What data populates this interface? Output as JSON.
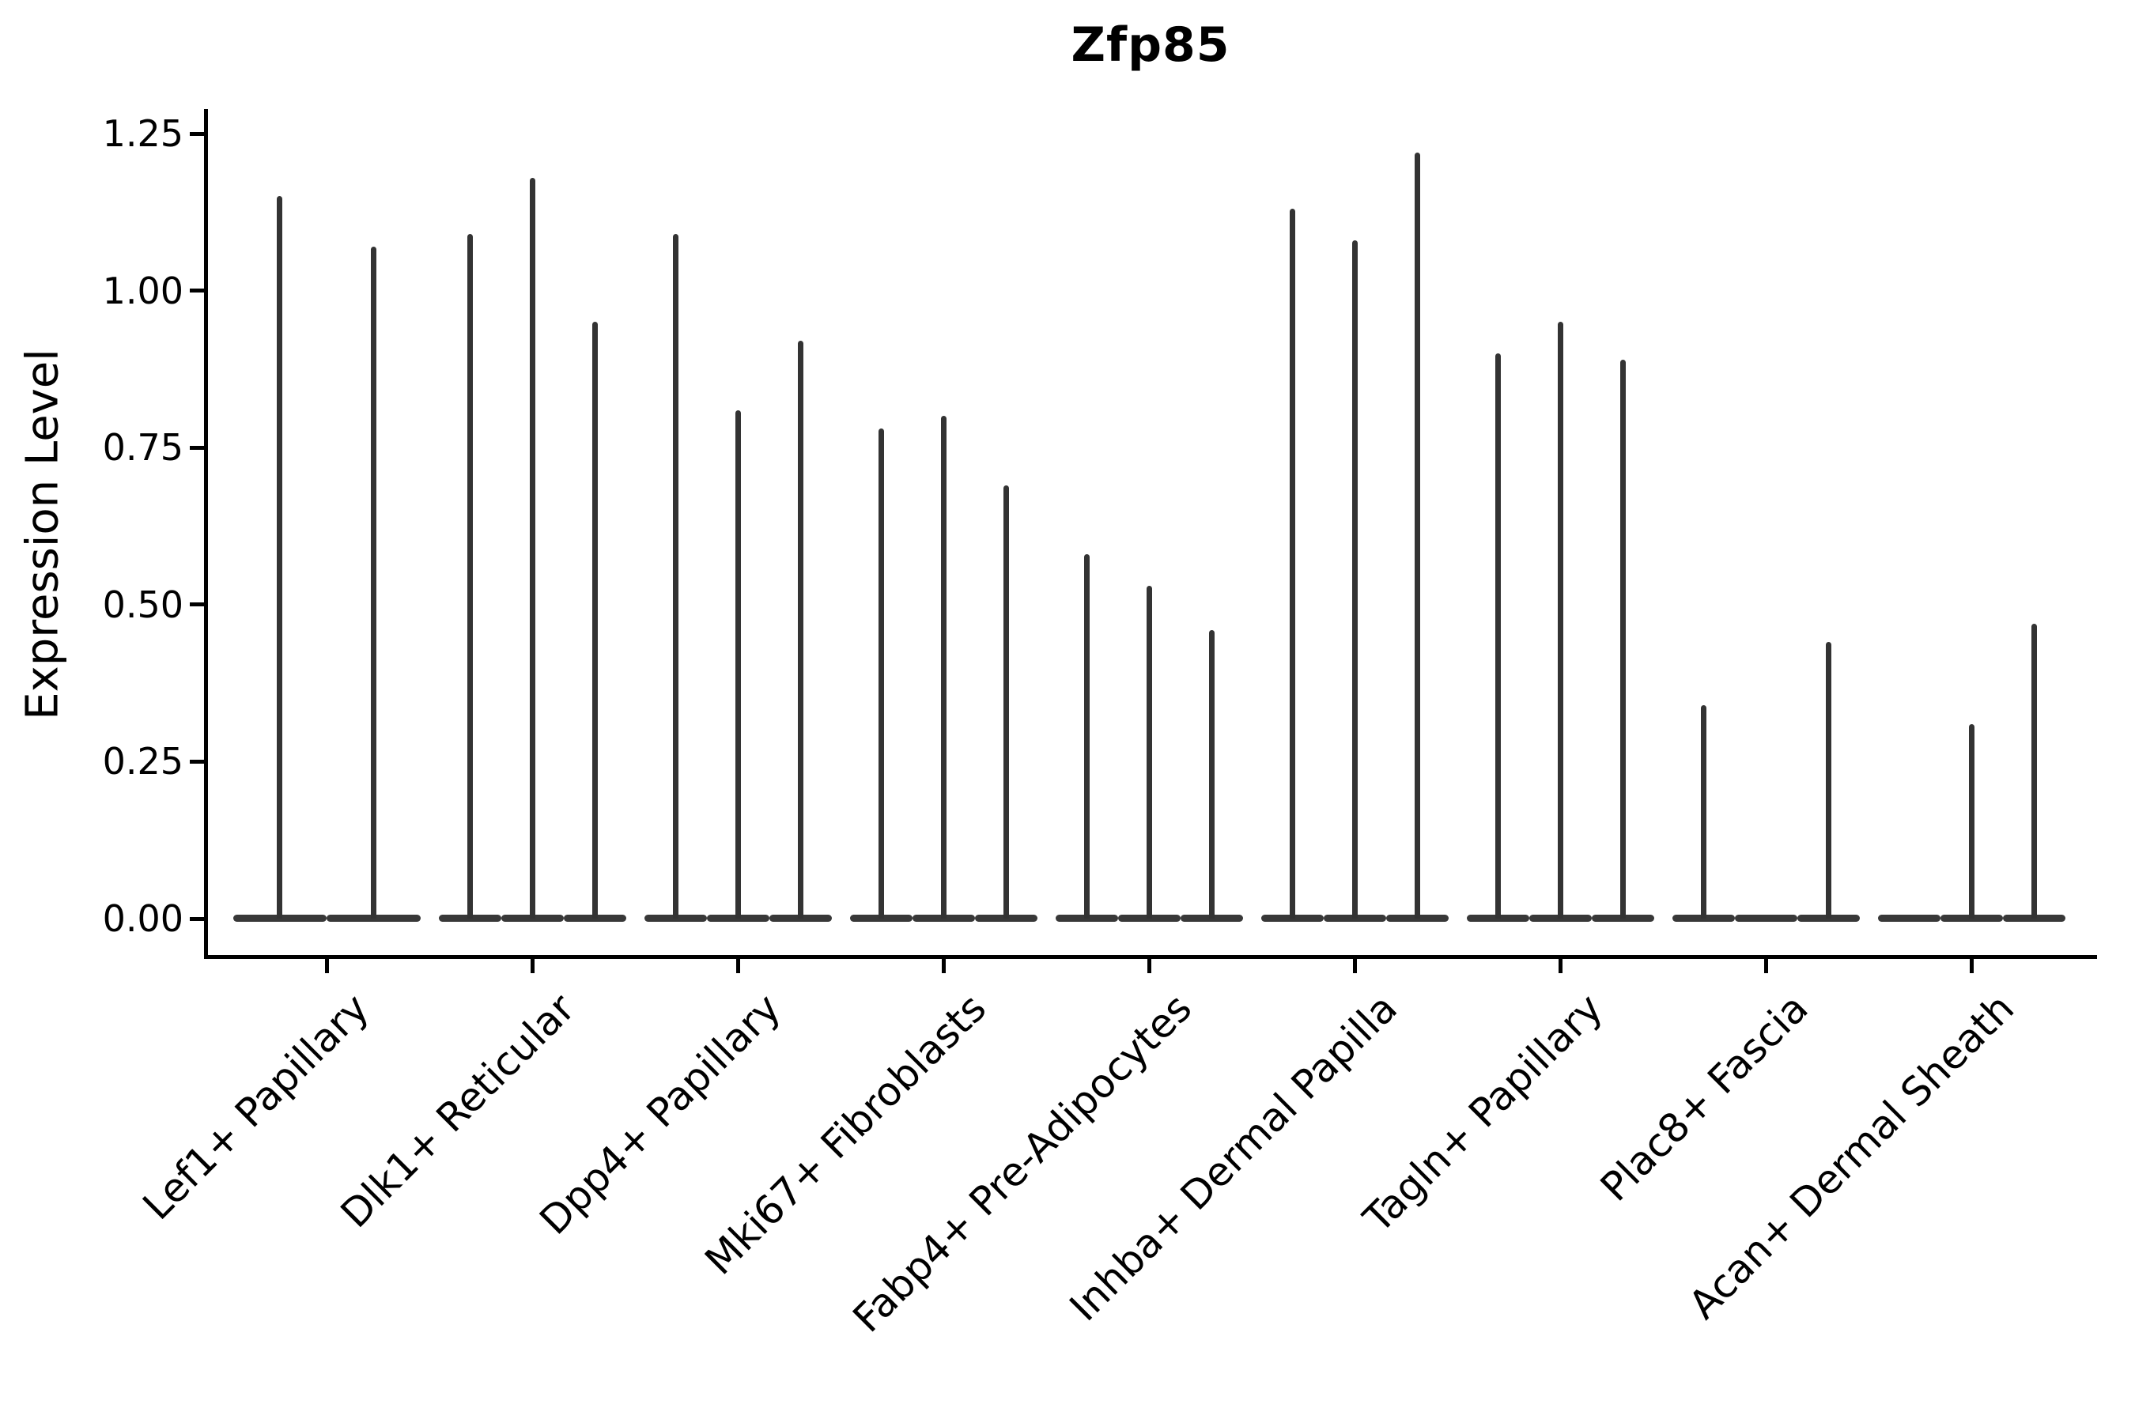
{
  "title": "Zfp85",
  "axes": {
    "ylabel": "Expression Level",
    "xlabel": ""
  },
  "chart_data": {
    "type": "violin",
    "title": "Zfp85",
    "ylabel": "Expression Level",
    "xlabel": "",
    "grid": false,
    "legend": false,
    "ylim": [
      -0.06,
      1.29
    ],
    "yticks": [
      0.0,
      0.25,
      0.5,
      0.75,
      1.0,
      1.25
    ],
    "ytick_labels": [
      "0.00",
      "0.25",
      "0.50",
      "0.75",
      "1.00",
      "1.25"
    ],
    "categories": [
      "Lef1+ Papillary",
      "Dlk1+ Reticular",
      "Dpp4+ Papillary",
      "Mki67+ Fibroblasts",
      "Fabp4+ Pre-Adipocytes",
      "Inhba+ Dermal Papilla",
      "Tagln+ Papillary",
      "Plac8+ Fascia",
      "Acan+ Dermal Sheath"
    ],
    "groups": [
      {
        "category": "Lef1+ Papillary",
        "violin_max_values": [
          1.15,
          1.07
        ]
      },
      {
        "category": "Dlk1+ Reticular",
        "violin_max_values": [
          1.09,
          1.18,
          0.95
        ]
      },
      {
        "category": "Dpp4+ Papillary",
        "violin_max_values": [
          1.09,
          0.81,
          0.92
        ]
      },
      {
        "category": "Mki67+ Fibroblasts",
        "violin_max_values": [
          0.78,
          0.8,
          0.69
        ]
      },
      {
        "category": "Fabp4+ Pre-Adipocytes",
        "violin_max_values": [
          0.58,
          0.53,
          0.46
        ]
      },
      {
        "category": "Inhba+ Dermal Papilla",
        "violin_max_values": [
          1.13,
          1.08,
          1.22
        ]
      },
      {
        "category": "Tagln+ Papillary",
        "violin_max_values": [
          0.9,
          0.95,
          0.89
        ]
      },
      {
        "category": "Plac8+ Fascia",
        "violin_max_values": [
          0.34,
          0.0,
          0.44
        ]
      },
      {
        "category": "Acan+ Dermal Sheath",
        "violin_max_values": [
          0.0,
          0.31,
          0.47
        ]
      }
    ],
    "notes": "Each category shows thin violins (one per sample/condition); most mass is at 0 giving a flat base with a thin spike up to the max expression value. Violins with max 0.00 are flat bases only.",
    "colors": {
      "violin": "#383838",
      "axis": "#000000",
      "background": "#ffffff"
    }
  }
}
